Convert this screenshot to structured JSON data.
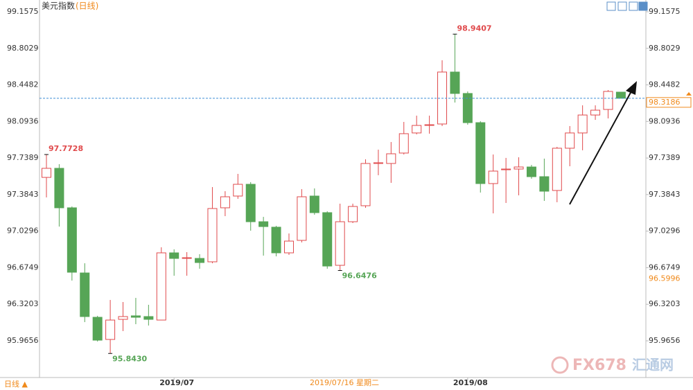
{
  "chart_data": {
    "type": "candlestick",
    "title": "美元指数",
    "subtitle": "(日线)",
    "period_label": "日线 ▲",
    "watermark": [
      "FX678",
      "汇通网"
    ],
    "categories": [
      null,
      null,
      null,
      null,
      null,
      null,
      null,
      null,
      null,
      null,
      "2019/07",
      null,
      null,
      null,
      null,
      null,
      null,
      null,
      null,
      null,
      null,
      null,
      null,
      null,
      null,
      null,
      null,
      null,
      null,
      null,
      null,
      null,
      null,
      "2019/08",
      null,
      null,
      null,
      null,
      null,
      null,
      null,
      null,
      null,
      null,
      null,
      null
    ],
    "open": [
      97.551,
      97.639,
      97.256,
      96.624,
      96.194,
      95.979,
      96.174,
      96.208,
      96.201,
      96.167,
      96.819,
      96.765,
      96.765,
      96.732,
      97.256,
      97.37,
      97.484,
      97.121,
      97.068,
      96.819,
      96.94,
      97.37,
      97.209,
      96.698,
      97.121,
      97.276,
      97.686,
      97.686,
      97.787,
      97.982,
      98.055,
      98.069,
      98.573,
      98.365,
      98.082,
      97.491,
      97.625,
      97.632,
      97.652,
      97.558,
      97.424,
      97.834,
      97.982,
      98.156,
      98.21,
      98.378
    ],
    "high": [
      97.7728,
      97.679,
      97.269,
      96.718,
      96.208,
      96.362,
      96.342,
      96.382,
      96.315,
      96.873,
      96.853,
      96.826,
      96.806,
      97.457,
      97.417,
      97.585,
      97.505,
      97.168,
      97.081,
      97.007,
      97.437,
      97.444,
      97.222,
      97.296,
      97.296,
      97.726,
      97.82,
      97.894,
      98.089,
      98.15,
      98.15,
      98.687,
      98.9407,
      98.385,
      98.096,
      97.773,
      97.74,
      97.746,
      97.672,
      97.733,
      97.847,
      98.049,
      98.25,
      98.25,
      98.398,
      98.378
    ],
    "low": [
      97.357,
      97.074,
      96.55,
      96.147,
      95.959,
      95.843,
      96.06,
      96.127,
      96.114,
      96.167,
      96.597,
      96.597,
      96.665,
      96.718,
      97.175,
      97.343,
      97.034,
      96.792,
      96.785,
      96.799,
      96.92,
      97.189,
      96.665,
      96.6476,
      97.108,
      97.256,
      97.572,
      97.498,
      97.773,
      97.968,
      97.975,
      98.049,
      98.277,
      98.062,
      97.404,
      97.202,
      97.303,
      97.377,
      97.538,
      97.323,
      97.31,
      97.659,
      97.814,
      98.109,
      98.123,
      98.3186
    ],
    "close": [
      97.639,
      97.256,
      96.631,
      96.201,
      95.972,
      96.167,
      96.201,
      96.194,
      96.174,
      96.819,
      96.765,
      96.772,
      96.725,
      97.249,
      97.363,
      97.484,
      97.121,
      97.074,
      96.819,
      96.933,
      97.363,
      97.209,
      96.691,
      97.121,
      97.269,
      97.686,
      97.693,
      97.78,
      97.975,
      98.055,
      98.062,
      98.573,
      98.365,
      98.082,
      97.491,
      97.612,
      97.632,
      97.652,
      97.558,
      97.417,
      97.834,
      97.982,
      98.156,
      98.203,
      98.385,
      98.3186
    ],
    "high_labels": [
      null,
      null,
      null,
      null,
      null,
      null,
      null,
      null,
      null,
      null,
      null,
      null,
      null,
      null,
      null,
      null,
      null,
      null,
      null,
      null,
      null,
      null,
      null,
      null,
      null,
      null,
      null,
      null,
      null,
      null,
      null,
      null,
      "98.9407",
      null,
      null,
      null,
      null,
      null,
      null,
      null,
      null,
      null,
      null,
      null,
      null,
      null
    ],
    "low_labels": [
      null,
      null,
      null,
      null,
      null,
      "95.8430",
      null,
      null,
      null,
      null,
      null,
      null,
      null,
      null,
      null,
      null,
      null,
      null,
      null,
      null,
      null,
      null,
      null,
      "96.6476",
      null,
      null,
      null,
      null,
      null,
      null,
      null,
      null,
      null,
      null,
      null,
      null,
      null,
      null,
      null,
      null,
      null,
      null,
      null,
      null,
      null,
      null
    ],
    "first_high_label": "97.7728",
    "up_color": "#e0494b",
    "down_color": "#56a556",
    "ylim": [
      95.6095,
      99.2717
    ],
    "yticks": [
      {
        "value": 99.1575,
        "label": "99.1575"
      },
      98.8029,
      98.4482,
      98.0936,
      97.7389,
      97.3843,
      97.0296,
      96.6749,
      96.3203,
      95.9656
    ],
    "last_price": {
      "value": 98.3186,
      "label": "98.3186"
    },
    "crosshair": {
      "value": 96.5996,
      "label": "96.5996",
      "date": "2019/07/16 星期二"
    },
    "grid": false
  }
}
